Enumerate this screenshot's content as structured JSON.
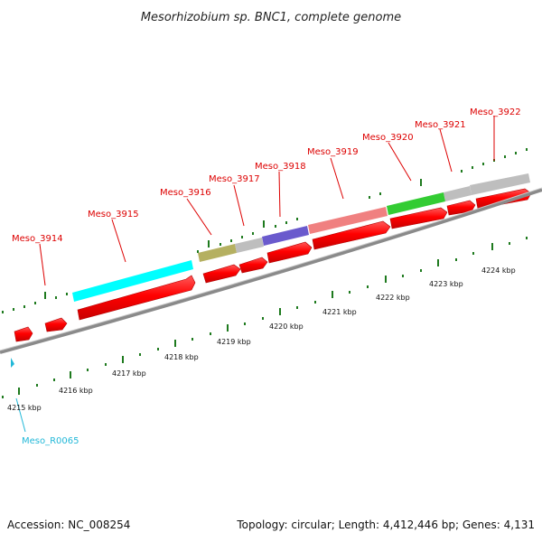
{
  "title": "Mesorhizobium sp. BNC1, complete genome",
  "footer": {
    "accession": "Accession: NC_008254",
    "summary": "Topology: circular; Length: 4,412,446 bp; Genes: 4,131"
  },
  "gene_labels": [
    "Meso_3914",
    "Meso_3915",
    "Meso_3916",
    "Meso_3917",
    "Meso_3918",
    "Meso_3919",
    "Meso_3920",
    "Meso_3921",
    "Meso_3922"
  ],
  "rna_label": "Meso_R0065",
  "kbp_labels": [
    "4215 kbp",
    "4216 kbp",
    "4217 kbp",
    "4218 kbp",
    "4219 kbp",
    "4220 kbp",
    "4221 kbp",
    "4222 kbp",
    "4223 kbp",
    "4224 kbp"
  ],
  "colors": {
    "cds": "#ff0000",
    "meso_3915_feature": "#00ffff",
    "meso_3916_feature": "#b5b061",
    "meso_3918_feature": "#6a5acd",
    "meso_3919_feature": "#f08080",
    "meso_3920_feature": "#33cc33",
    "other_feature": "#bebebe",
    "tick": "#1e7a1e",
    "backbone": "#888888",
    "rna": "#22b8d8"
  }
}
